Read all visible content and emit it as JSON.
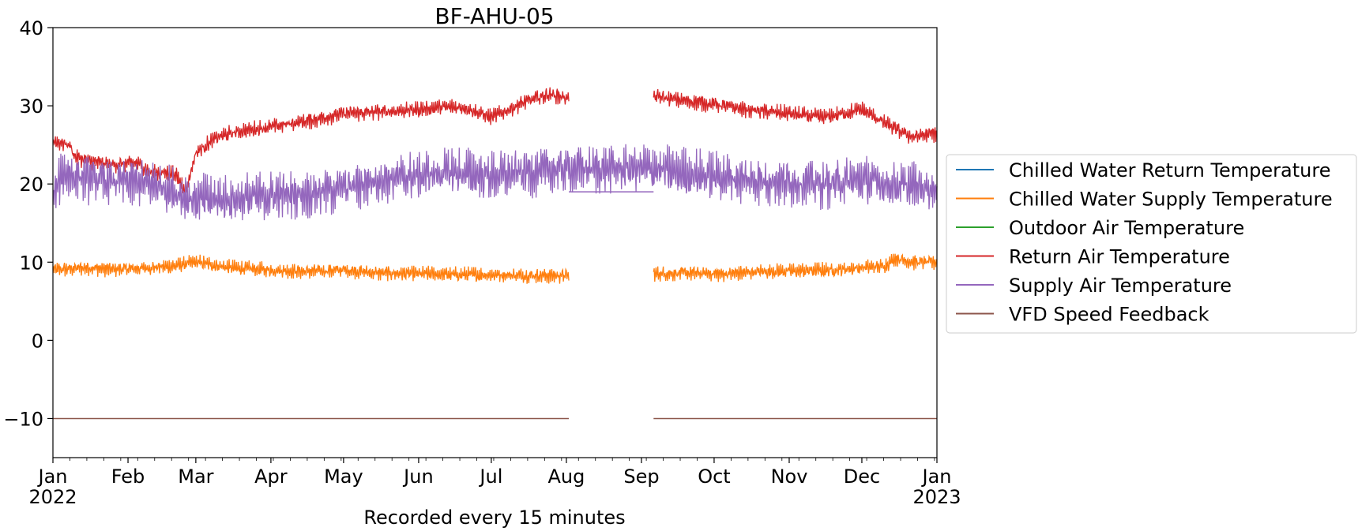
{
  "chart_data": {
    "type": "line",
    "title": "BF-AHU-05",
    "xlabel": "Recorded every 15 minutes",
    "ylabel": "",
    "xlim": [
      "2022-01-01",
      "2023-01-01"
    ],
    "ylim": [
      -15,
      40
    ],
    "yticks": [
      -10,
      0,
      10,
      20,
      30,
      40
    ],
    "ytick_labels": [
      "−10",
      "0",
      "10",
      "20",
      "30",
      "40"
    ],
    "xticks": [
      {
        "date": "2022-01-01",
        "label": "Jan",
        "sublabel": "2022"
      },
      {
        "date": "2022-02-01",
        "label": "Feb"
      },
      {
        "date": "2022-03-01",
        "label": "Mar"
      },
      {
        "date": "2022-04-01",
        "label": "Apr"
      },
      {
        "date": "2022-05-01",
        "label": "May"
      },
      {
        "date": "2022-06-01",
        "label": "Jun"
      },
      {
        "date": "2022-07-01",
        "label": "Jul"
      },
      {
        "date": "2022-08-01",
        "label": "Aug"
      },
      {
        "date": "2022-09-01",
        "label": "Sep"
      },
      {
        "date": "2022-10-01",
        "label": "Oct"
      },
      {
        "date": "2022-11-01",
        "label": "Nov"
      },
      {
        "date": "2022-12-01",
        "label": "Dec"
      },
      {
        "date": "2023-01-01",
        "label": "Jan",
        "sublabel": "2023"
      }
    ],
    "grid": false,
    "legend_position": "right, outside plot",
    "series": [
      {
        "name": "Chilled Water Return Temperature",
        "color": "#1f77b4",
        "x": [],
        "y": []
      },
      {
        "name": "Chilled Water Supply Temperature",
        "color": "#ff7f0e",
        "x": [
          "2022-01-01",
          "2022-01-15",
          "2022-01-25",
          "2022-02-05",
          "2022-02-20",
          "2022-03-01",
          "2022-03-15",
          "2022-04-01",
          "2022-04-15",
          "2022-05-01",
          "2022-05-15",
          "2022-06-01",
          "2022-06-15",
          "2022-07-01",
          "2022-07-15",
          "2022-08-02",
          null,
          "2022-09-06",
          "2022-09-20",
          "2022-10-05",
          "2022-10-20",
          "2022-11-05",
          "2022-11-20",
          "2022-12-01",
          "2022-12-10",
          "2022-12-15",
          "2022-12-22",
          "2023-01-01"
        ],
        "y": [
          9,
          9.3,
          9.1,
          9.2,
          9.5,
          10,
          9.3,
          9,
          8.8,
          9,
          8.6,
          8.5,
          8.4,
          8.4,
          8.3,
          8.3,
          null,
          8.5,
          8.6,
          8.5,
          8.8,
          8.9,
          9,
          9.3,
          9.5,
          10.5,
          10,
          10
        ],
        "band": 1.1
      },
      {
        "name": "Outdoor Air Temperature",
        "color": "#2ca02c",
        "x": [],
        "y": []
      },
      {
        "name": "Return Air Temperature",
        "color": "#d62728",
        "x": [
          "2022-01-01",
          "2022-01-08",
          "2022-01-10",
          "2022-01-15",
          "2022-01-25",
          "2022-02-05",
          "2022-02-10",
          "2022-02-20",
          "2022-02-25",
          "2022-03-01",
          "2022-03-10",
          "2022-03-20",
          "2022-04-01",
          "2022-04-15",
          "2022-05-01",
          "2022-05-15",
          "2022-06-01",
          "2022-06-10",
          "2022-06-20",
          "2022-07-01",
          "2022-07-15",
          "2022-07-25",
          "2022-08-02",
          null,
          "2022-09-06",
          "2022-09-15",
          "2022-10-01",
          "2022-10-15",
          "2022-11-01",
          "2022-11-15",
          "2022-12-01",
          "2022-12-15",
          "2022-12-22",
          "2023-01-01"
        ],
        "y": [
          25.5,
          25,
          23.5,
          23,
          22.5,
          22.7,
          21.5,
          21.4,
          19.2,
          24,
          26,
          26.8,
          27.3,
          28,
          29,
          29.2,
          29.5,
          29.8,
          29.8,
          28.5,
          30.5,
          31.5,
          31,
          null,
          31.2,
          30.8,
          30.2,
          29.5,
          29,
          28.5,
          29.5,
          27,
          26,
          26.5
        ],
        "band": 1.2
      },
      {
        "name": "Supply Air Temperature",
        "color": "#9467bd",
        "x": [
          "2022-01-01",
          "2022-01-05",
          "2022-01-10",
          "2022-01-20",
          "2022-02-05",
          "2022-02-15",
          "2022-02-25",
          "2022-03-01",
          "2022-03-15",
          "2022-04-01",
          "2022-04-15",
          "2022-05-01",
          "2022-05-15",
          "2022-06-01",
          "2022-06-15",
          "2022-07-01",
          "2022-07-15",
          "2022-08-02",
          "2022-09-06",
          "2022-09-15",
          "2022-10-01",
          "2022-10-15",
          "2022-11-01",
          "2022-11-15",
          "2022-12-01",
          "2022-12-15",
          "2023-01-01"
        ],
        "y": [
          18,
          21.5,
          21,
          20.5,
          20.2,
          19.8,
          18.3,
          18,
          18,
          18.5,
          18.8,
          19.5,
          20.5,
          21,
          21.5,
          21,
          21.5,
          22,
          22,
          21.5,
          21,
          20.5,
          20.3,
          20,
          20.5,
          19.8,
          19.5
        ],
        "band": 3.5,
        "flat_segment": {
          "x": [
            "2022-08-02",
            "2022-09-06"
          ],
          "y": 19
        }
      },
      {
        "name": "VFD Speed Feedback",
        "color": "#8c564b",
        "x": [
          "2022-01-01",
          "2022-08-02",
          null,
          "2022-09-06",
          "2023-01-01"
        ],
        "y": [
          -10,
          -10,
          null,
          -10,
          -10
        ]
      }
    ]
  }
}
